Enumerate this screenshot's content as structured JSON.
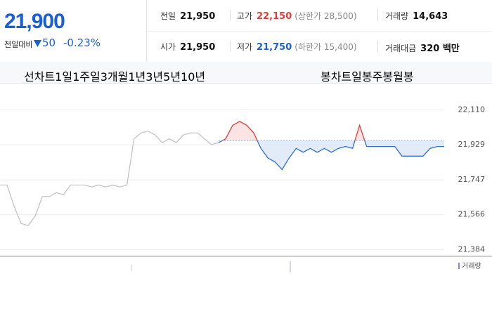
{
  "header": {
    "price": "21,900",
    "change_label": "전일대비",
    "change": "50",
    "change_pct": "-0.23%"
  },
  "stats": [
    [
      {
        "label": "전일",
        "value": "21,950"
      },
      {
        "label": "고가",
        "value": "22,150",
        "limit": "(상한가 28,500)"
      },
      {
        "label": "거래량",
        "value": "14,643"
      }
    ],
    [
      {
        "label": "시가",
        "value": "21,950"
      },
      {
        "label": "저가",
        "value": "21,750",
        "limit": "(하한가 15,400)"
      },
      {
        "label": "거래대금",
        "value": "320 백만"
      }
    ]
  ],
  "tabs": {
    "line_label": "선차트",
    "periods": [
      "1일",
      "1주일",
      "3개월",
      "1년",
      "3년",
      "5년",
      "10년"
    ],
    "candle_label": "봉차트",
    "candles": [
      "일봉",
      "주봉",
      "월봉"
    ]
  },
  "chart_data": {
    "type": "line",
    "baseline": 21950,
    "ylim": [
      21350,
      22170
    ],
    "yticks": [
      {
        "value": 22110,
        "label": "22,110"
      },
      {
        "value": 21929,
        "label": "21,929"
      },
      {
        "value": 21747,
        "label": "21,747"
      },
      {
        "value": 21566,
        "label": "21,566"
      },
      {
        "value": 21384,
        "label": "21,384"
      }
    ],
    "grid": true,
    "volume_label": "거래량",
    "series": [
      {
        "color": "#c4c4c4",
        "values": [
          21720,
          21720,
          21610,
          21520,
          21510,
          21560,
          21660,
          21660,
          21680,
          21670,
          21720,
          21720,
          21720,
          21710,
          21720,
          21710,
          21720,
          21710,
          21720,
          21960,
          21990,
          22000,
          21980,
          21940,
          21960,
          21940,
          21980,
          21990,
          21990,
          21960,
          21930,
          21940,
          null,
          null,
          null,
          null,
          null,
          null,
          null,
          null,
          null,
          null,
          null,
          null,
          null,
          null,
          null,
          null,
          null,
          null,
          null,
          null,
          null,
          null,
          null,
          null,
          null,
          null,
          null,
          null,
          null,
          null,
          null,
          null
        ]
      },
      {
        "color": "#2f6fd1",
        "color_up": "#e23b3b",
        "values": [
          null,
          null,
          null,
          null,
          null,
          null,
          null,
          null,
          null,
          null,
          null,
          null,
          null,
          null,
          null,
          null,
          null,
          null,
          null,
          null,
          null,
          null,
          null,
          null,
          null,
          null,
          null,
          null,
          null,
          null,
          null,
          21940,
          21960,
          22030,
          22050,
          22030,
          21990,
          21910,
          21860,
          21840,
          21800,
          21860,
          21910,
          21890,
          21910,
          21890,
          21910,
          21890,
          21910,
          21920,
          21910,
          22030,
          21920,
          21920,
          21920,
          21920,
          21920,
          21870,
          21870,
          21870,
          21870,
          21910,
          21920,
          21920
        ]
      }
    ]
  }
}
